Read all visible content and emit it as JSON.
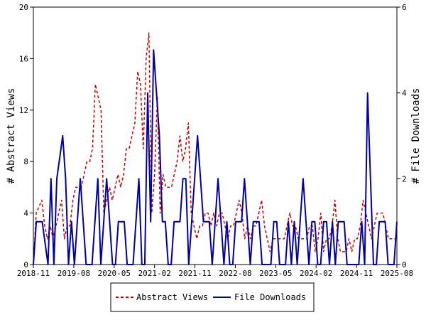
{
  "chart_data": {
    "type": "line",
    "x_ticks": [
      "2018-11",
      "2019-08",
      "2020-05",
      "2021-02",
      "2021-11",
      "2022-08",
      "2023-05",
      "2024-02",
      "2024-11",
      "2025-08"
    ],
    "ylabel_left": "# Abstract Views",
    "ylabel_right": "# File Downloads",
    "yleft_ticks": [
      "0",
      "4",
      "8",
      "12",
      "16",
      "20"
    ],
    "yright_ticks": [
      "0",
      "2",
      "4",
      "6"
    ],
    "yleft_lim": [
      0,
      20
    ],
    "yright_lim": [
      0,
      6
    ],
    "legend_position": "bottom-center",
    "series": [
      {
        "name": "Abstract Views",
        "axis": "left",
        "color": "#cc0000",
        "dash": "dashed",
        "values": [
          0,
          4,
          4.5,
          5,
          3,
          2,
          3,
          2,
          3,
          4,
          5,
          2,
          3,
          3,
          5,
          6,
          6,
          6,
          7,
          8,
          8,
          9,
          14,
          13,
          12,
          4,
          5,
          6,
          5,
          6,
          7,
          6,
          7,
          9,
          9,
          10,
          11,
          15,
          14,
          9,
          16,
          18,
          4,
          7,
          13,
          4,
          7,
          6,
          6,
          6,
          7,
          8,
          10,
          8,
          9,
          11,
          4,
          3,
          2,
          3,
          3,
          4,
          4,
          3,
          4,
          3,
          4,
          4,
          3,
          2,
          3,
          3,
          4,
          5,
          4,
          2,
          3,
          2,
          3,
          3,
          4,
          5,
          3,
          2,
          1,
          2,
          2,
          2,
          2,
          2,
          3,
          4,
          3,
          3,
          2,
          2,
          2,
          2,
          3,
          3,
          1,
          2,
          4,
          1,
          2,
          2,
          3,
          5,
          2,
          1,
          1,
          1,
          2,
          1,
          2,
          2,
          3,
          5,
          4,
          3,
          2,
          3,
          4,
          4,
          4,
          3,
          2,
          2,
          2,
          2
        ]
      },
      {
        "name": "File Downloads",
        "axis": "right",
        "color": "#0000aa",
        "dash": "solid",
        "values": [
          0,
          1,
          1,
          1,
          0.5,
          0,
          2,
          0,
          2,
          2.5,
          3,
          2,
          0,
          1,
          0,
          1,
          2,
          1,
          0,
          0,
          0,
          1,
          2,
          0,
          1,
          2,
          1,
          0,
          0,
          1,
          1,
          1,
          0,
          0,
          0,
          1,
          2,
          0,
          0,
          4,
          1,
          5,
          4,
          3,
          1,
          1,
          0,
          0,
          1,
          1,
          1,
          2,
          2,
          0,
          1,
          2,
          3,
          2,
          1,
          1,
          1,
          0,
          1,
          2,
          1,
          0,
          1,
          0,
          0,
          1,
          1,
          1,
          2,
          1,
          0,
          1,
          1,
          1,
          0,
          0,
          0,
          0,
          1,
          1,
          0,
          0,
          0,
          1,
          0,
          1,
          0,
          1,
          2,
          1,
          0,
          1,
          1,
          0,
          0,
          1,
          1,
          0,
          1,
          0,
          1,
          1,
          1,
          0,
          0,
          0,
          0,
          0,
          1,
          0,
          4,
          2,
          0,
          0,
          1,
          1,
          1,
          0,
          0,
          0,
          1
        ]
      }
    ]
  }
}
